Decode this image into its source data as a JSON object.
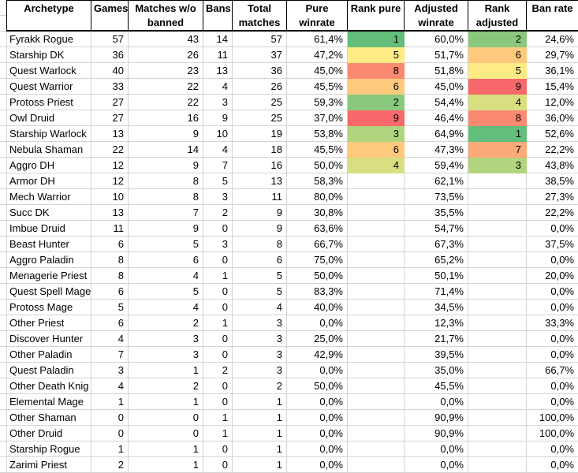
{
  "table": {
    "columns": [
      {
        "id": "archetype",
        "label": "Archetype",
        "align": "left"
      },
      {
        "id": "games",
        "label": "Games",
        "align": "right"
      },
      {
        "id": "matches_wo_banned",
        "label": "Matches w/o banned",
        "align": "right"
      },
      {
        "id": "bans",
        "label": "Bans",
        "align": "right"
      },
      {
        "id": "total_matches",
        "label": "Total matches",
        "align": "right"
      },
      {
        "id": "pure_winrate",
        "label": "Pure winrate",
        "align": "right"
      },
      {
        "id": "rank_pure",
        "label": "Rank pure",
        "align": "right"
      },
      {
        "id": "adjusted_winrate",
        "label": "Adjusted winrate",
        "align": "right"
      },
      {
        "id": "rank_adjusted",
        "label": "Rank adjusted",
        "align": "right"
      },
      {
        "id": "ban_rate",
        "label": "Ban rate",
        "align": "right"
      }
    ],
    "rank_colors": {
      "1": "#63BE7B",
      "2": "#8AC97D",
      "3": "#B1D47F",
      "4": "#D8DF81",
      "5": "#FFEB84",
      "6": "#FDCA7D",
      "7": "#FBAA77",
      "8": "#F98971",
      "9": "#F8696B"
    },
    "rows": [
      {
        "archetype": "Fyrakk Rogue",
        "games": 57,
        "matches_wo_banned": 43,
        "bans": 14,
        "total_matches": 57,
        "pure_winrate": "61,4%",
        "rank_pure": 1,
        "adjusted_winrate": "60,0%",
        "rank_adjusted": 2,
        "ban_rate": "24,6%"
      },
      {
        "archetype": "Starship DK",
        "games": 36,
        "matches_wo_banned": 26,
        "bans": 11,
        "total_matches": 37,
        "pure_winrate": "47,2%",
        "rank_pure": 5,
        "adjusted_winrate": "51,7%",
        "rank_adjusted": 6,
        "ban_rate": "29,7%"
      },
      {
        "archetype": "Quest Warlock",
        "games": 40,
        "matches_wo_banned": 23,
        "bans": 13,
        "total_matches": 36,
        "pure_winrate": "45,0%",
        "rank_pure": 8,
        "adjusted_winrate": "51,8%",
        "rank_adjusted": 5,
        "ban_rate": "36,1%"
      },
      {
        "archetype": "Quest Warrior",
        "games": 33,
        "matches_wo_banned": 22,
        "bans": 4,
        "total_matches": 26,
        "pure_winrate": "45,5%",
        "rank_pure": 6,
        "adjusted_winrate": "45,0%",
        "rank_adjusted": 9,
        "ban_rate": "15,4%"
      },
      {
        "archetype": "Protoss Priest",
        "games": 27,
        "matches_wo_banned": 22,
        "bans": 3,
        "total_matches": 25,
        "pure_winrate": "59,3%",
        "rank_pure": 2,
        "adjusted_winrate": "54,4%",
        "rank_adjusted": 4,
        "ban_rate": "12,0%"
      },
      {
        "archetype": "Owl Druid",
        "games": 27,
        "matches_wo_banned": 16,
        "bans": 9,
        "total_matches": 25,
        "pure_winrate": "37,0%",
        "rank_pure": 9,
        "adjusted_winrate": "46,4%",
        "rank_adjusted": 8,
        "ban_rate": "36,0%"
      },
      {
        "archetype": "Starship Warlock",
        "games": 13,
        "matches_wo_banned": 9,
        "bans": 10,
        "total_matches": 19,
        "pure_winrate": "53,8%",
        "rank_pure": 3,
        "adjusted_winrate": "64,9%",
        "rank_adjusted": 1,
        "ban_rate": "52,6%"
      },
      {
        "archetype": "Nebula Shaman",
        "games": 22,
        "matches_wo_banned": 14,
        "bans": 4,
        "total_matches": 18,
        "pure_winrate": "45,5%",
        "rank_pure": 6,
        "adjusted_winrate": "47,3%",
        "rank_adjusted": 7,
        "ban_rate": "22,2%"
      },
      {
        "archetype": "Aggro DH",
        "games": 12,
        "matches_wo_banned": 9,
        "bans": 7,
        "total_matches": 16,
        "pure_winrate": "50,0%",
        "rank_pure": 4,
        "adjusted_winrate": "59,4%",
        "rank_adjusted": 3,
        "ban_rate": "43,8%"
      },
      {
        "archetype": "Armor DH",
        "games": 12,
        "matches_wo_banned": 8,
        "bans": 5,
        "total_matches": 13,
        "pure_winrate": "58,3%",
        "rank_pure": null,
        "adjusted_winrate": "62,1%",
        "rank_adjusted": null,
        "ban_rate": "38,5%"
      },
      {
        "archetype": "Mech Warrior",
        "games": 10,
        "matches_wo_banned": 8,
        "bans": 3,
        "total_matches": 11,
        "pure_winrate": "80,0%",
        "rank_pure": null,
        "adjusted_winrate": "73,5%",
        "rank_adjusted": null,
        "ban_rate": "27,3%"
      },
      {
        "archetype": "Succ DK",
        "games": 13,
        "matches_wo_banned": 7,
        "bans": 2,
        "total_matches": 9,
        "pure_winrate": "30,8%",
        "rank_pure": null,
        "adjusted_winrate": "35,5%",
        "rank_adjusted": null,
        "ban_rate": "22,2%"
      },
      {
        "archetype": "Imbue Druid",
        "games": 11,
        "matches_wo_banned": 9,
        "bans": 0,
        "total_matches": 9,
        "pure_winrate": "63,6%",
        "rank_pure": null,
        "adjusted_winrate": "54,7%",
        "rank_adjusted": null,
        "ban_rate": "0,0%"
      },
      {
        "archetype": "Beast Hunter",
        "games": 6,
        "matches_wo_banned": 5,
        "bans": 3,
        "total_matches": 8,
        "pure_winrate": "66,7%",
        "rank_pure": null,
        "adjusted_winrate": "67,3%",
        "rank_adjusted": null,
        "ban_rate": "37,5%"
      },
      {
        "archetype": "Aggro Paladin",
        "games": 8,
        "matches_wo_banned": 6,
        "bans": 0,
        "total_matches": 6,
        "pure_winrate": "75,0%",
        "rank_pure": null,
        "adjusted_winrate": "65,2%",
        "rank_adjusted": null,
        "ban_rate": "0,0%"
      },
      {
        "archetype": "Menagerie Priest",
        "games": 8,
        "matches_wo_banned": 4,
        "bans": 1,
        "total_matches": 5,
        "pure_winrate": "50,0%",
        "rank_pure": null,
        "adjusted_winrate": "50,1%",
        "rank_adjusted": null,
        "ban_rate": "20,0%"
      },
      {
        "archetype": "Quest Spell Mage",
        "games": 6,
        "matches_wo_banned": 5,
        "bans": 0,
        "total_matches": 5,
        "pure_winrate": "83,3%",
        "rank_pure": null,
        "adjusted_winrate": "71,4%",
        "rank_adjusted": null,
        "ban_rate": "0,0%"
      },
      {
        "archetype": "Protoss Mage",
        "games": 5,
        "matches_wo_banned": 4,
        "bans": 0,
        "total_matches": 4,
        "pure_winrate": "40,0%",
        "rank_pure": null,
        "adjusted_winrate": "34,5%",
        "rank_adjusted": null,
        "ban_rate": "0,0%"
      },
      {
        "archetype": "Other Priest",
        "games": 6,
        "matches_wo_banned": 2,
        "bans": 1,
        "total_matches": 3,
        "pure_winrate": "0,0%",
        "rank_pure": null,
        "adjusted_winrate": "12,3%",
        "rank_adjusted": null,
        "ban_rate": "33,3%"
      },
      {
        "archetype": "Discover Hunter",
        "games": 4,
        "matches_wo_banned": 3,
        "bans": 0,
        "total_matches": 3,
        "pure_winrate": "25,0%",
        "rank_pure": null,
        "adjusted_winrate": "21,7%",
        "rank_adjusted": null,
        "ban_rate": "0,0%"
      },
      {
        "archetype": "Other Paladin",
        "games": 7,
        "matches_wo_banned": 3,
        "bans": 0,
        "total_matches": 3,
        "pure_winrate": "42,9%",
        "rank_pure": null,
        "adjusted_winrate": "39,5%",
        "rank_adjusted": null,
        "ban_rate": "0,0%"
      },
      {
        "archetype": "Quest Paladin",
        "games": 3,
        "matches_wo_banned": 1,
        "bans": 2,
        "total_matches": 3,
        "pure_winrate": "0,0%",
        "rank_pure": null,
        "adjusted_winrate": "35,0%",
        "rank_adjusted": null,
        "ban_rate": "66,7%"
      },
      {
        "archetype": "Other Death Knig",
        "games": 4,
        "matches_wo_banned": 2,
        "bans": 0,
        "total_matches": 2,
        "pure_winrate": "50,0%",
        "rank_pure": null,
        "adjusted_winrate": "45,5%",
        "rank_adjusted": null,
        "ban_rate": "0,0%"
      },
      {
        "archetype": "Elemental Mage",
        "games": 1,
        "matches_wo_banned": 1,
        "bans": 0,
        "total_matches": 1,
        "pure_winrate": "0,0%",
        "rank_pure": null,
        "adjusted_winrate": "0,0%",
        "rank_adjusted": null,
        "ban_rate": "0,0%"
      },
      {
        "archetype": "Other Shaman",
        "games": 0,
        "matches_wo_banned": 0,
        "bans": 1,
        "total_matches": 1,
        "pure_winrate": "0,0%",
        "rank_pure": null,
        "adjusted_winrate": "90,9%",
        "rank_adjusted": null,
        "ban_rate": "100,0%"
      },
      {
        "archetype": "Other Druid",
        "games": 0,
        "matches_wo_banned": 0,
        "bans": 1,
        "total_matches": 1,
        "pure_winrate": "0,0%",
        "rank_pure": null,
        "adjusted_winrate": "90,9%",
        "rank_adjusted": null,
        "ban_rate": "100,0%"
      },
      {
        "archetype": "Starship Rogue",
        "games": 1,
        "matches_wo_banned": 1,
        "bans": 0,
        "total_matches": 1,
        "pure_winrate": "0,0%",
        "rank_pure": null,
        "adjusted_winrate": "0,0%",
        "rank_adjusted": null,
        "ban_rate": "0,0%"
      },
      {
        "archetype": "Zarimi Priest",
        "games": 2,
        "matches_wo_banned": 1,
        "bans": 0,
        "total_matches": 1,
        "pure_winrate": "0,0%",
        "rank_pure": null,
        "adjusted_winrate": "0,0%",
        "rank_adjusted": null,
        "ban_rate": "0,0%"
      }
    ]
  },
  "style": {
    "gridline_color": "#d4d4d4",
    "header_border_color": "#000000"
  }
}
